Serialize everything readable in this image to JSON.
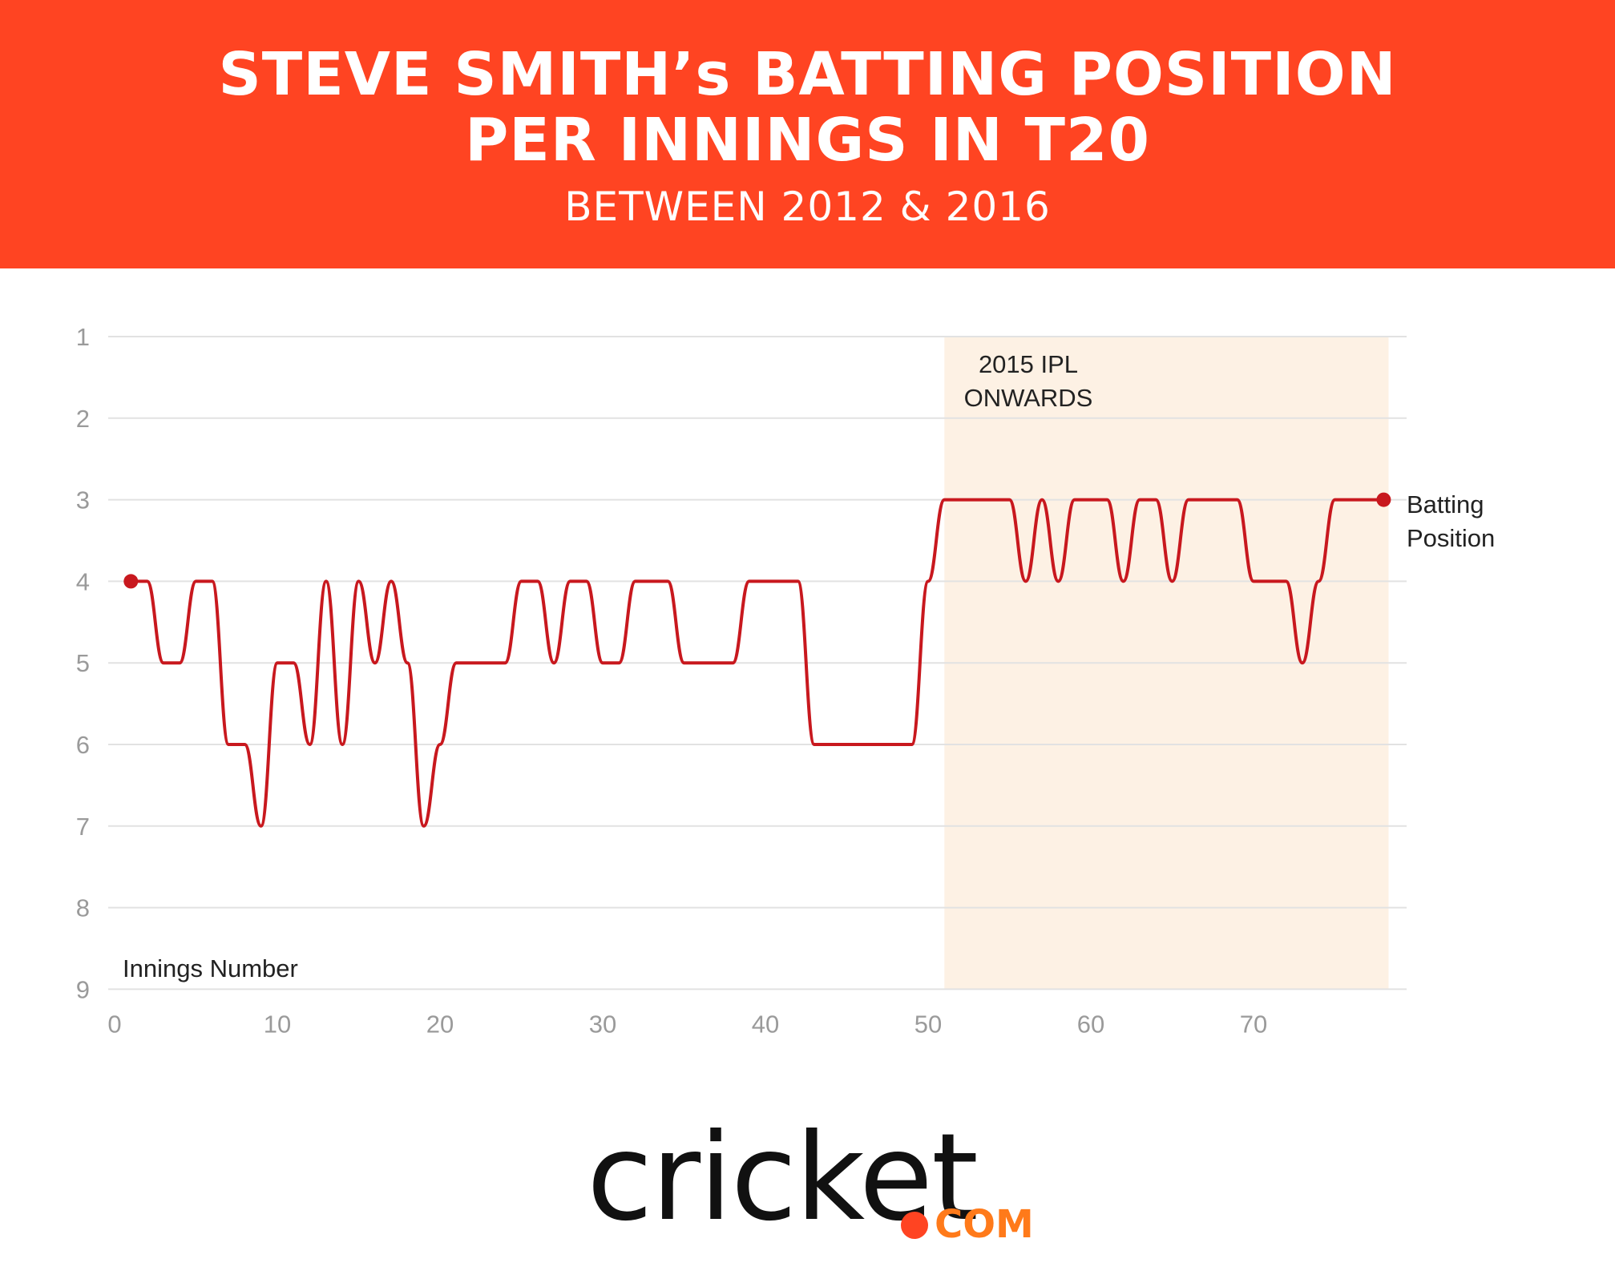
{
  "header": {
    "title_line1": "STEVE SMITH’s BATTING POSITION",
    "title_line2": "PER INNINGS IN T20",
    "subtitle": "BETWEEN 2012 & 2016"
  },
  "colors": {
    "banner": "#ff4422",
    "line": "#c8181e",
    "highlight": "#fdf1e4",
    "grid": "#e2e2e2",
    "tick": "#9a9a9a"
  },
  "chart_data": {
    "type": "line",
    "title": "STEVE SMITH’s BATTING POSITION PER INNINGS IN T20",
    "subtitle": "BETWEEN 2012 & 2016",
    "xlabel": "Innings Number",
    "ylabel": "",
    "xlim": [
      0,
      80
    ],
    "ylim": [
      1,
      9
    ],
    "y_inverted": true,
    "x_ticks": [
      0,
      10,
      20,
      30,
      40,
      50,
      60,
      70
    ],
    "y_ticks": [
      1,
      2,
      3,
      4,
      5,
      6,
      7,
      8,
      9
    ],
    "grid": true,
    "series": [
      {
        "name": "Batting Position",
        "x": [
          1,
          2,
          3,
          4,
          5,
          6,
          7,
          8,
          9,
          10,
          11,
          12,
          13,
          14,
          15,
          16,
          17,
          18,
          19,
          20,
          21,
          22,
          23,
          24,
          25,
          26,
          27,
          28,
          29,
          30,
          31,
          32,
          33,
          34,
          35,
          36,
          37,
          38,
          39,
          40,
          41,
          42,
          43,
          44,
          45,
          46,
          47,
          48,
          49,
          50,
          51,
          52,
          53,
          54,
          55,
          56,
          57,
          58,
          59,
          60,
          61,
          62,
          63,
          64,
          65,
          66,
          67,
          68,
          69,
          70,
          71,
          72,
          73,
          74,
          75,
          76,
          77,
          78
        ],
        "y": [
          4,
          4,
          5,
          5,
          4,
          4,
          6,
          6,
          7,
          5,
          5,
          6,
          4,
          6,
          4,
          5,
          4,
          5,
          7,
          6,
          5,
          5,
          5,
          5,
          4,
          4,
          5,
          4,
          4,
          5,
          5,
          4,
          4,
          4,
          5,
          5,
          5,
          5,
          4,
          4,
          4,
          4,
          6,
          6,
          6,
          6,
          6,
          6,
          6,
          4,
          3,
          3,
          3,
          3,
          3,
          4,
          3,
          4,
          3,
          3,
          3,
          4,
          3,
          3,
          4,
          3,
          3,
          3,
          3,
          4,
          4,
          4,
          5,
          4,
          3,
          3,
          3,
          3
        ]
      }
    ],
    "annotations": [
      {
        "text_line1": "2015 IPL",
        "text_line2": "ONWARDS",
        "x_start": 51,
        "x_end": 78.3
      }
    ],
    "end_label_line1": "Batting",
    "end_label_line2": "Position"
  },
  "logo": {
    "word": "cricket",
    "suffix": "COM"
  }
}
